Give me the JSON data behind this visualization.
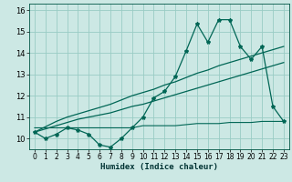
{
  "xlabel": "Humidex (Indice chaleur)",
  "background_color": "#cce8e4",
  "grid_color": "#99ccc4",
  "line_color": "#006655",
  "xlim": [
    -0.5,
    23.5
  ],
  "ylim": [
    9.5,
    16.3
  ],
  "xticks": [
    0,
    1,
    2,
    3,
    4,
    5,
    6,
    7,
    8,
    9,
    10,
    11,
    12,
    13,
    14,
    15,
    16,
    17,
    18,
    19,
    20,
    21,
    22,
    23
  ],
  "yticks": [
    10,
    11,
    12,
    13,
    14,
    15,
    16
  ],
  "x": [
    0,
    1,
    2,
    3,
    4,
    5,
    6,
    7,
    8,
    9,
    10,
    11,
    12,
    13,
    14,
    15,
    16,
    17,
    18,
    19,
    20,
    21,
    22,
    23
  ],
  "y_main": [
    10.3,
    10.0,
    10.2,
    10.5,
    10.4,
    10.2,
    9.7,
    9.6,
    10.0,
    10.5,
    11.0,
    11.9,
    12.2,
    12.9,
    14.1,
    15.35,
    14.5,
    15.55,
    15.55,
    14.3,
    13.7,
    14.3,
    11.5,
    10.8
  ],
  "y_trend1": [
    10.3,
    10.45,
    10.6,
    10.75,
    10.9,
    11.0,
    11.1,
    11.2,
    11.35,
    11.5,
    11.6,
    11.75,
    11.9,
    12.05,
    12.2,
    12.35,
    12.5,
    12.65,
    12.8,
    12.95,
    13.1,
    13.25,
    13.4,
    13.55
  ],
  "y_trend2": [
    10.3,
    10.55,
    10.8,
    11.0,
    11.15,
    11.3,
    11.45,
    11.6,
    11.8,
    12.0,
    12.15,
    12.3,
    12.5,
    12.65,
    12.85,
    13.05,
    13.2,
    13.4,
    13.55,
    13.7,
    13.85,
    14.0,
    14.15,
    14.3
  ],
  "y_flat": [
    10.5,
    10.5,
    10.5,
    10.5,
    10.5,
    10.5,
    10.5,
    10.5,
    10.5,
    10.5,
    10.6,
    10.6,
    10.6,
    10.6,
    10.65,
    10.7,
    10.7,
    10.7,
    10.75,
    10.75,
    10.75,
    10.8,
    10.8,
    10.8
  ]
}
